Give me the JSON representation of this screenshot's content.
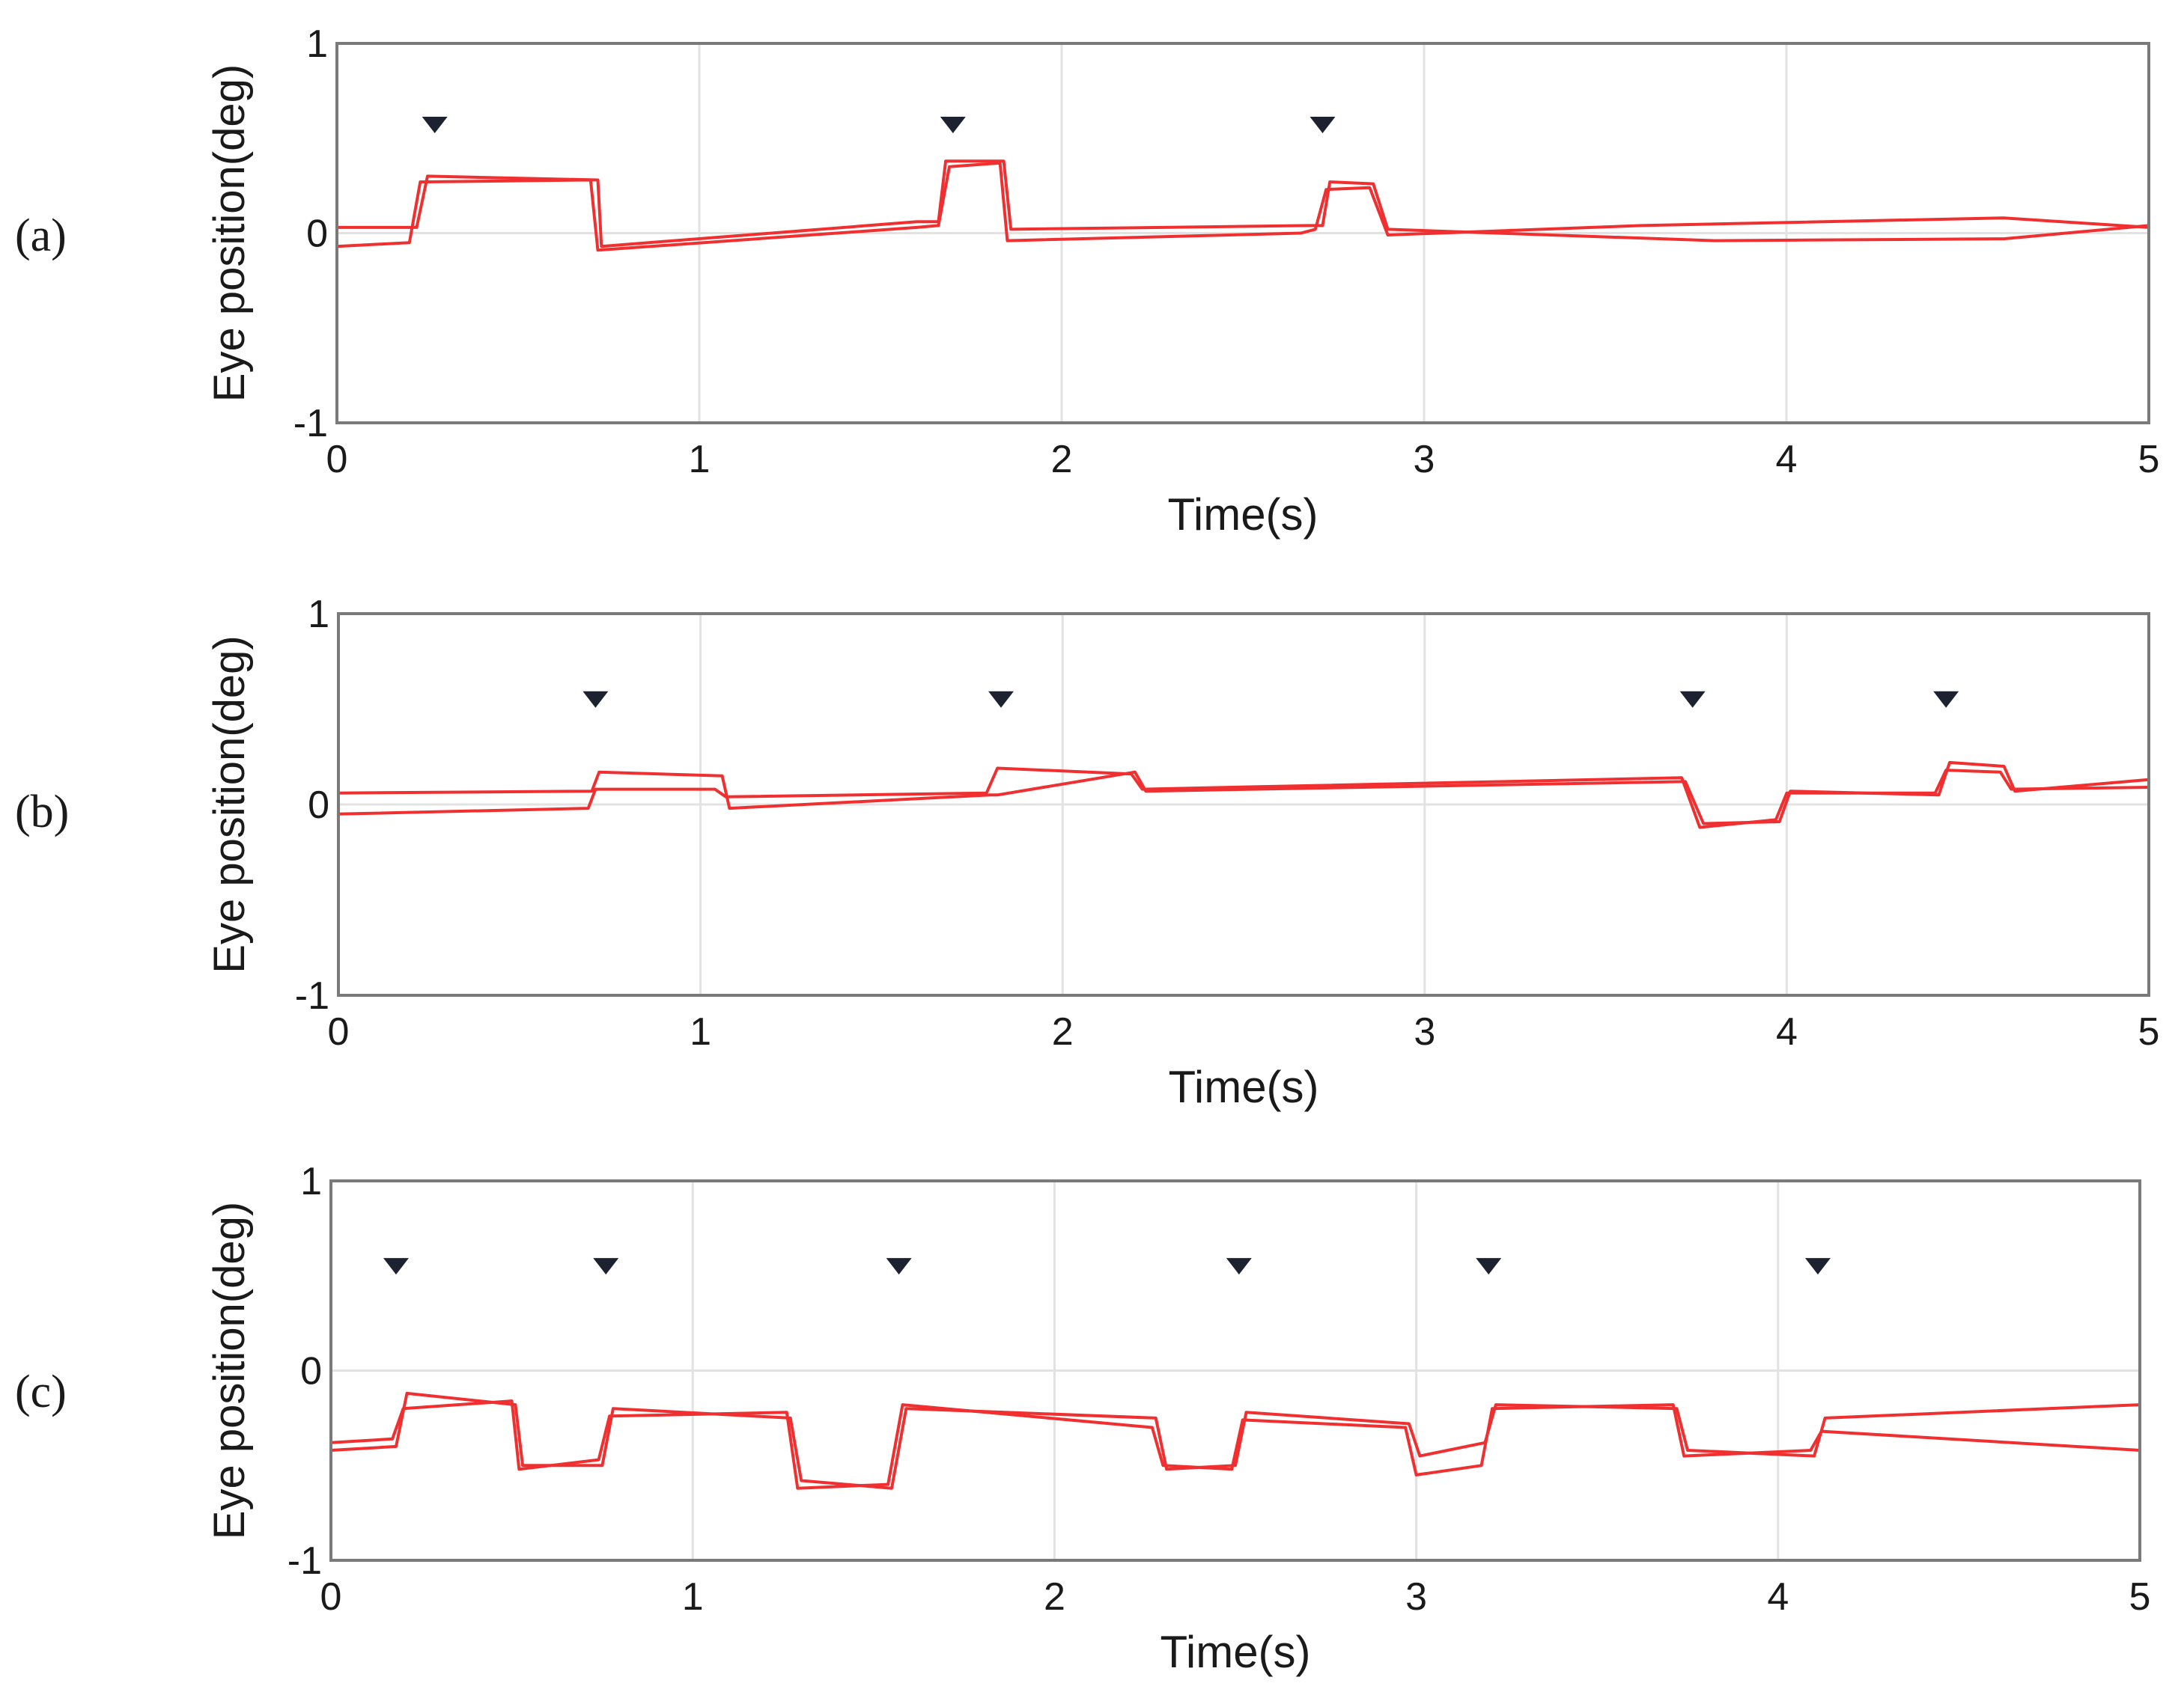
{
  "figure": {
    "colors": {
      "trace": "#f03030",
      "marker": "#1c2230",
      "grid": "#e2e2e2",
      "frame": "#7a7a7a",
      "text": "#1a1a1a"
    }
  },
  "chart_data": [
    {
      "type": "line",
      "panel_label": "(a)",
      "xlabel": "Time(s)",
      "ylabel": "Eye position(deg)",
      "xlim": [
        0,
        5
      ],
      "ylim": [
        -1,
        1
      ],
      "x_ticks": [
        "0",
        "1",
        "2",
        "3",
        "4",
        "5"
      ],
      "y_ticks": [
        "1",
        "0",
        "-1"
      ],
      "grid": true,
      "marker_times": [
        0.27,
        1.7,
        2.72
      ],
      "marker_y": 0.57,
      "series": [
        {
          "x": [
            0,
            0.22,
            0.25,
            0.72,
            0.73,
            1.6,
            1.66,
            1.68,
            1.84,
            1.86,
            2.68,
            2.72,
            2.74,
            2.86,
            2.9,
            3.8,
            4.6,
            5
          ],
          "y": [
            0.03,
            0.03,
            0.3,
            0.28,
            -0.07,
            0.06,
            0.06,
            0.38,
            0.38,
            0.02,
            0.04,
            0.04,
            0.27,
            0.26,
            0.02,
            -0.04,
            -0.03,
            0.04
          ]
        },
        {
          "x": [
            0,
            0.2,
            0.23,
            0.7,
            0.72,
            1.6,
            1.66,
            1.69,
            1.83,
            1.85,
            2.66,
            2.7,
            2.73,
            2.85,
            2.9,
            3.6,
            4.6,
            5
          ],
          "y": [
            -0.07,
            -0.05,
            0.27,
            0.28,
            -0.09,
            0.03,
            0.04,
            0.35,
            0.37,
            -0.04,
            0.0,
            0.02,
            0.23,
            0.24,
            -0.01,
            0.04,
            0.08,
            0.03
          ]
        }
      ]
    },
    {
      "type": "line",
      "panel_label": "(b)",
      "xlabel": "Time(s)",
      "ylabel": "Eye position(deg)",
      "xlim": [
        0,
        5
      ],
      "ylim": [
        -1,
        1
      ],
      "x_ticks": [
        "0",
        "1",
        "2",
        "3",
        "4",
        "5"
      ],
      "y_ticks": [
        "1",
        "0",
        "-1"
      ],
      "grid": true,
      "marker_times": [
        0.71,
        1.83,
        3.74,
        4.44
      ],
      "marker_y": 0.55,
      "series": [
        {
          "x": [
            0,
            0.7,
            0.72,
            1.06,
            1.08,
            1.8,
            1.82,
            2.2,
            2.23,
            3.72,
            3.77,
            3.98,
            4.01,
            4.42,
            4.45,
            4.6,
            4.63,
            5
          ],
          "y": [
            0.06,
            0.07,
            0.17,
            0.15,
            -0.02,
            0.05,
            0.05,
            0.17,
            0.07,
            0.12,
            -0.1,
            -0.09,
            0.07,
            0.05,
            0.22,
            0.2,
            0.07,
            0.13
          ]
        },
        {
          "x": [
            0,
            0.69,
            0.71,
            1.04,
            1.07,
            1.79,
            1.82,
            2.19,
            2.22,
            3.71,
            3.76,
            3.97,
            4.0,
            4.41,
            4.44,
            4.59,
            4.62,
            5
          ],
          "y": [
            -0.05,
            -0.02,
            0.08,
            0.08,
            0.04,
            0.06,
            0.19,
            0.16,
            0.08,
            0.14,
            -0.12,
            -0.08,
            0.06,
            0.06,
            0.18,
            0.17,
            0.08,
            0.09
          ]
        }
      ]
    },
    {
      "type": "line",
      "panel_label": "(c)",
      "xlabel": "Time(s)",
      "ylabel": "Eye position(deg)",
      "xlim": [
        0,
        5
      ],
      "ylim": [
        -1,
        1
      ],
      "x_ticks": [
        "0",
        "1",
        "2",
        "3",
        "4",
        "5"
      ],
      "y_ticks": [
        "1",
        "0",
        "-1"
      ],
      "grid": true,
      "marker_times": [
        0.18,
        0.76,
        1.57,
        2.51,
        3.2,
        4.11
      ],
      "marker_y": 0.55,
      "series": [
        {
          "x": [
            0,
            0.18,
            0.21,
            0.51,
            0.53,
            0.75,
            0.78,
            1.27,
            1.3,
            1.55,
            1.59,
            2.28,
            2.31,
            2.5,
            2.53,
            2.98,
            3.01,
            3.19,
            3.22,
            3.72,
            3.75,
            4.1,
            4.13,
            5
          ],
          "y": [
            -0.42,
            -0.4,
            -0.12,
            -0.18,
            -0.5,
            -0.5,
            -0.2,
            -0.25,
            -0.58,
            -0.62,
            -0.2,
            -0.25,
            -0.52,
            -0.5,
            -0.22,
            -0.28,
            -0.45,
            -0.38,
            -0.18,
            -0.2,
            -0.42,
            -0.45,
            -0.25,
            -0.18
          ]
        },
        {
          "x": [
            0,
            0.17,
            0.2,
            0.5,
            0.52,
            0.74,
            0.77,
            1.26,
            1.29,
            1.54,
            1.58,
            2.27,
            2.3,
            2.49,
            2.52,
            2.97,
            3.0,
            3.18,
            3.21,
            3.71,
            3.74,
            4.09,
            4.12,
            5
          ],
          "y": [
            -0.38,
            -0.36,
            -0.2,
            -0.16,
            -0.52,
            -0.47,
            -0.24,
            -0.22,
            -0.62,
            -0.6,
            -0.18,
            -0.3,
            -0.5,
            -0.52,
            -0.26,
            -0.3,
            -0.55,
            -0.5,
            -0.2,
            -0.18,
            -0.45,
            -0.42,
            -0.32,
            -0.42
          ]
        }
      ]
    }
  ]
}
